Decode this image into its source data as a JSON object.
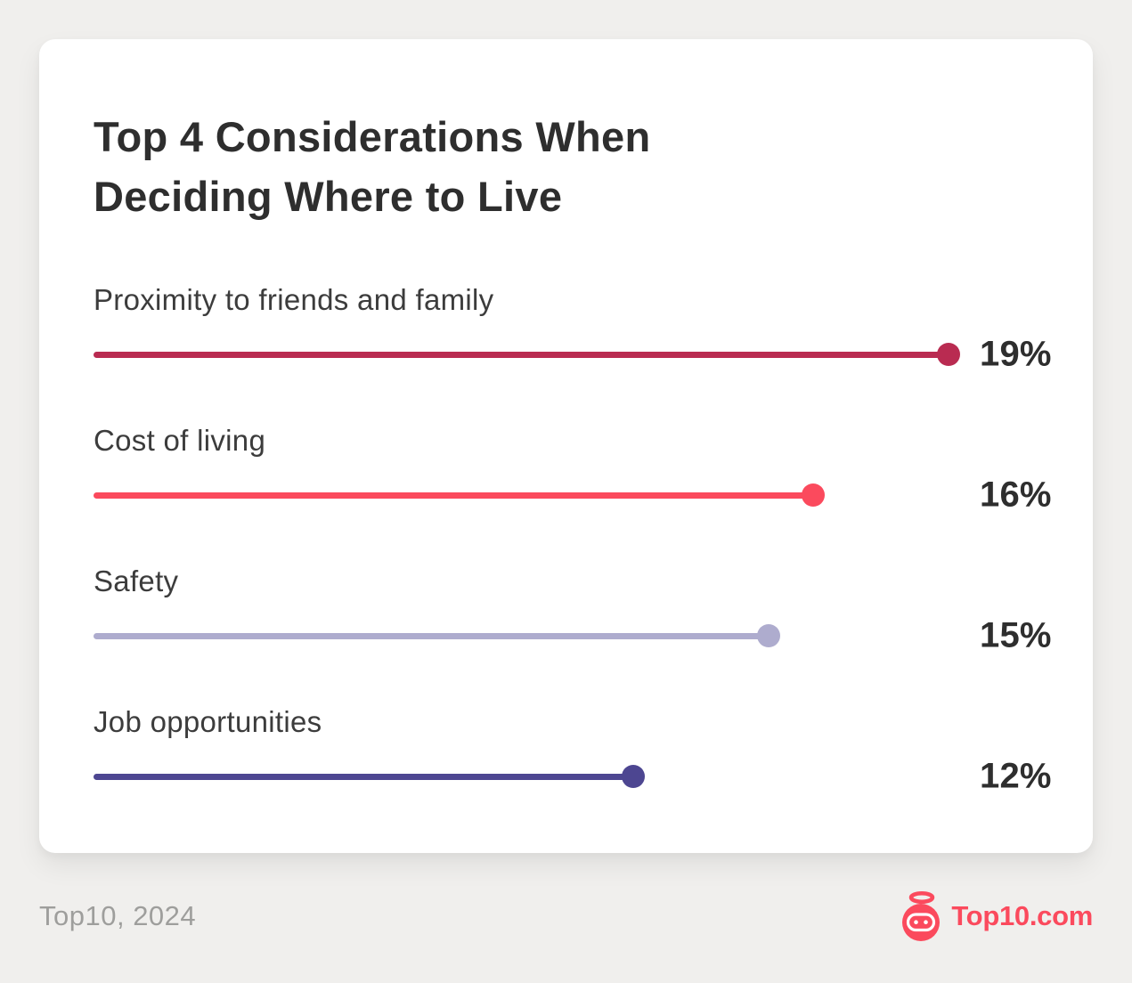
{
  "page": {
    "background": "#f0efed",
    "card_background": "#ffffff",
    "title_color": "#2e2e2e",
    "category_label_color": "#3c3c3c",
    "value_label_color": "#2e2e2e",
    "muted_text_color": "#9e9e9c"
  },
  "chart_data": {
    "type": "bar",
    "variant": "lollipop",
    "orientation": "horizontal",
    "title": "Top 4 Considerations When Deciding Where to Live",
    "unit": "%",
    "scale_max": 19,
    "grid": false,
    "legend": false,
    "value_label_position": "right",
    "items": [
      {
        "category": "Proximity to friends and family",
        "value": 19,
        "display": "19%",
        "color": "#b92b51"
      },
      {
        "category": "Cost of living",
        "value": 16,
        "display": "16%",
        "color": "#fb4a5d"
      },
      {
        "category": "Safety",
        "value": 15,
        "display": "15%",
        "color": "#aeacce"
      },
      {
        "category": "Job opportunities",
        "value": 12,
        "display": "12%",
        "color": "#4d4691"
      }
    ]
  },
  "footer": {
    "source": "Top10, 2024",
    "logo_text": "Top10.com",
    "logo_color": "#fb4a5d",
    "logo_icon": "robot-with-halo-icon"
  }
}
